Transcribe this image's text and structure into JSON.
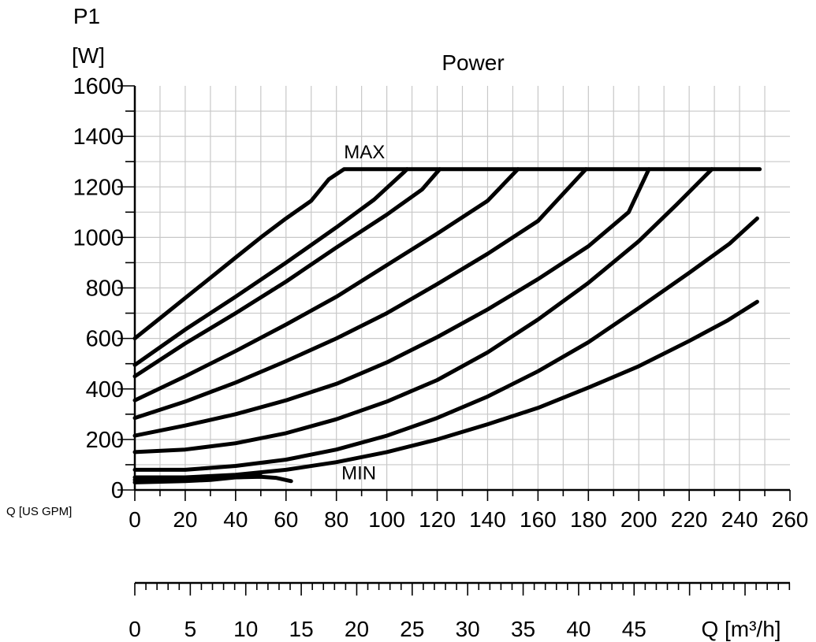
{
  "chart_data": {
    "type": "line",
    "title": "Power",
    "ylabel_line1": "P1",
    "ylabel_line2": "[W]",
    "xlabel": "Q [US GPM]",
    "x2label": "Q [m³/h]",
    "xlim": [
      0,
      260
    ],
    "ylim": [
      0,
      1600
    ],
    "x2lim": [
      0,
      59.05
    ],
    "y_ticks": [
      0,
      200,
      400,
      600,
      800,
      1000,
      1200,
      1400,
      1600
    ],
    "x_ticks": [
      0,
      20,
      40,
      60,
      80,
      100,
      120,
      140,
      160,
      180,
      200,
      220,
      240,
      260
    ],
    "x2_ticks": [
      0,
      5,
      10,
      15,
      20,
      25,
      30,
      35,
      40,
      45
    ],
    "grid": true,
    "annotations": [
      {
        "text": "MAX",
        "x": 83,
        "y": 1300
      },
      {
        "text": "MIN",
        "x": 82,
        "y": 30
      }
    ],
    "series": [
      {
        "points": [
          [
            0,
            600
          ],
          [
            10,
            680
          ],
          [
            20,
            760
          ],
          [
            30,
            840
          ],
          [
            40,
            920
          ],
          [
            50,
            1000
          ],
          [
            60,
            1075
          ],
          [
            70,
            1145
          ],
          [
            77,
            1230
          ],
          [
            83,
            1270
          ],
          [
            248,
            1270
          ]
        ]
      },
      {
        "points": [
          [
            0,
            495
          ],
          [
            20,
            635
          ],
          [
            40,
            765
          ],
          [
            60,
            900
          ],
          [
            80,
            1040
          ],
          [
            95,
            1150
          ],
          [
            107,
            1260
          ],
          [
            108,
            1270
          ]
        ]
      },
      {
        "points": [
          [
            0,
            450
          ],
          [
            20,
            580
          ],
          [
            40,
            700
          ],
          [
            60,
            825
          ],
          [
            80,
            960
          ],
          [
            100,
            1090
          ],
          [
            114,
            1190
          ],
          [
            121,
            1270
          ]
        ]
      },
      {
        "points": [
          [
            0,
            355
          ],
          [
            20,
            450
          ],
          [
            40,
            550
          ],
          [
            60,
            655
          ],
          [
            80,
            765
          ],
          [
            100,
            890
          ],
          [
            120,
            1015
          ],
          [
            140,
            1145
          ],
          [
            152,
            1270
          ]
        ]
      },
      {
        "points": [
          [
            0,
            285
          ],
          [
            20,
            350
          ],
          [
            40,
            425
          ],
          [
            60,
            510
          ],
          [
            80,
            600
          ],
          [
            100,
            700
          ],
          [
            120,
            815
          ],
          [
            140,
            935
          ],
          [
            160,
            1065
          ],
          [
            179,
            1270
          ]
        ]
      },
      {
        "points": [
          [
            0,
            215
          ],
          [
            20,
            255
          ],
          [
            40,
            300
          ],
          [
            60,
            355
          ],
          [
            80,
            420
          ],
          [
            100,
            505
          ],
          [
            120,
            605
          ],
          [
            140,
            715
          ],
          [
            160,
            835
          ],
          [
            180,
            965
          ],
          [
            196,
            1100
          ],
          [
            204,
            1270
          ]
        ]
      },
      {
        "points": [
          [
            0,
            150
          ],
          [
            20,
            160
          ],
          [
            40,
            185
          ],
          [
            60,
            225
          ],
          [
            80,
            280
          ],
          [
            100,
            350
          ],
          [
            120,
            435
          ],
          [
            140,
            545
          ],
          [
            160,
            675
          ],
          [
            180,
            820
          ],
          [
            200,
            985
          ],
          [
            215,
            1130
          ],
          [
            229,
            1270
          ]
        ]
      },
      {
        "points": [
          [
            0,
            80
          ],
          [
            20,
            80
          ],
          [
            40,
            95
          ],
          [
            60,
            120
          ],
          [
            80,
            160
          ],
          [
            100,
            215
          ],
          [
            120,
            285
          ],
          [
            140,
            370
          ],
          [
            160,
            470
          ],
          [
            180,
            585
          ],
          [
            200,
            720
          ],
          [
            220,
            860
          ],
          [
            236,
            975
          ],
          [
            247,
            1075
          ]
        ]
      },
      {
        "points": [
          [
            0,
            50
          ],
          [
            20,
            50
          ],
          [
            40,
            60
          ],
          [
            60,
            80
          ],
          [
            80,
            110
          ],
          [
            100,
            150
          ],
          [
            120,
            200
          ],
          [
            140,
            260
          ],
          [
            160,
            325
          ],
          [
            180,
            405
          ],
          [
            200,
            490
          ],
          [
            220,
            590
          ],
          [
            235,
            670
          ],
          [
            247,
            745
          ]
        ]
      },
      {
        "points": [
          [
            0,
            40
          ],
          [
            20,
            45
          ],
          [
            30,
            50
          ],
          [
            40,
            50
          ],
          [
            50,
            52
          ],
          [
            56,
            48
          ],
          [
            62,
            35
          ]
        ]
      },
      {
        "points": [
          [
            0,
            30
          ],
          [
            20,
            35
          ],
          [
            30,
            40
          ],
          [
            40,
            50
          ],
          [
            50,
            55
          ]
        ]
      }
    ]
  }
}
